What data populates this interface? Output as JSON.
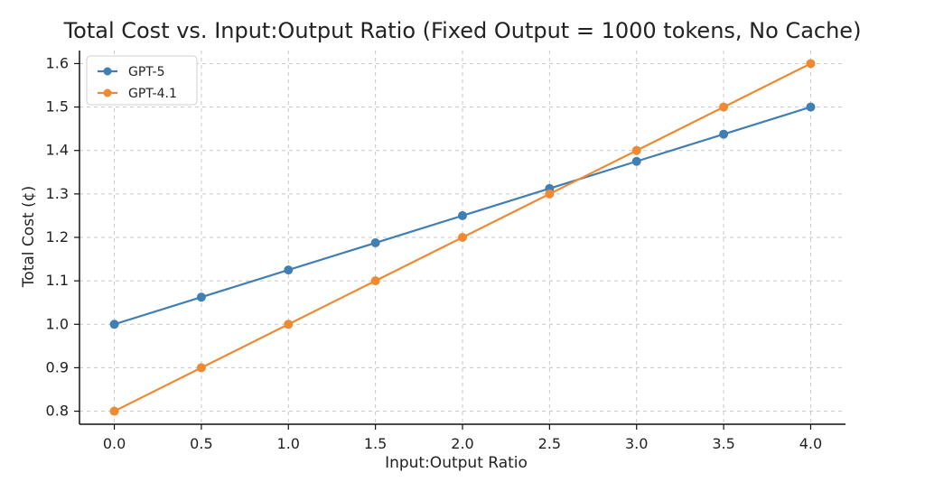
{
  "chart_data": {
    "type": "line",
    "title": "Total Cost vs. Input:Output Ratio (Fixed Output = 1000 tokens, No Cache)",
    "xlabel": "Input:Output Ratio",
    "ylabel": "Total Cost (¢)",
    "x": [
      0.0,
      0.5,
      1.0,
      1.5,
      2.0,
      2.5,
      3.0,
      3.5,
      4.0
    ],
    "x_tick_labels": [
      "0.0",
      "0.5",
      "1.0",
      "1.5",
      "2.0",
      "2.5",
      "3.0",
      "3.5",
      "4.0"
    ],
    "y_tick_values": [
      0.8,
      0.9,
      1.0,
      1.1,
      1.2,
      1.3,
      1.4,
      1.5,
      1.6
    ],
    "y_tick_labels": [
      "0.8",
      "0.9",
      "1.0",
      "1.1",
      "1.2",
      "1.3",
      "1.4",
      "1.5",
      "1.6"
    ],
    "xlim": [
      -0.2,
      4.2
    ],
    "ylim": [
      0.77,
      1.63
    ],
    "grid": true,
    "legend_position": "top-left",
    "series": [
      {
        "name": "GPT-5",
        "color": "#3f7fb3",
        "values": [
          1.0,
          1.0625,
          1.125,
          1.1875,
          1.25,
          1.3125,
          1.375,
          1.4375,
          1.5
        ]
      },
      {
        "name": "GPT-4.1",
        "color": "#ef8a33",
        "values": [
          0.8,
          0.9,
          1.0,
          1.1,
          1.2,
          1.3,
          1.4,
          1.5,
          1.6
        ]
      }
    ]
  }
}
